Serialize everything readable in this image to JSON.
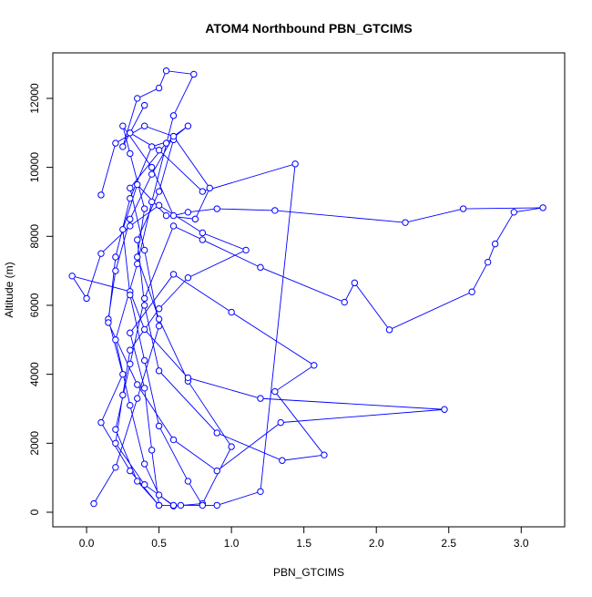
{
  "chart_data": {
    "type": "line",
    "title": "ATOM4 Northbound PBN_GTCIMS",
    "x_label": "PBN_GTCIMS",
    "y_label": "Altitude (m)",
    "xlim": [
      -0.233,
      3.3
    ],
    "ylim": [
      -423,
      13320
    ],
    "xticks": [
      {
        "value": 0,
        "label": "0.0"
      },
      0.5,
      {
        "value": 1,
        "label": "1.0"
      },
      1.5,
      {
        "value": 2,
        "label": "2.0"
      },
      2.5,
      {
        "value": 3,
        "label": "3.0"
      }
    ],
    "yticks": [
      0,
      2000,
      4000,
      6000,
      8000,
      10000,
      12000
    ],
    "series": [
      {
        "color": "#0000ff",
        "x": [
          0.05,
          0.2,
          0.35,
          0.5,
          0.4,
          0.3,
          0.55,
          0.7,
          0.6,
          0.45,
          0.3,
          0.2,
          0.15,
          0.25,
          0.1,
          0.3,
          0.5,
          0.65,
          0.9,
          1.2,
          1.44,
          0.8,
          0.5,
          0.3,
          0.4,
          0.25,
          0.35,
          0.5,
          0.55,
          0.74,
          0.6,
          0.45,
          0.35,
          0.2,
          0.3,
          0.4,
          0.5,
          0.6,
          0.8,
          1.0,
          0.7,
          0.5,
          0.35,
          0.4,
          0.3,
          0.25,
          0.45,
          0.6,
          0.7,
          0.9,
          1.3,
          2.2,
          2.6,
          3.15,
          2.95,
          2.82,
          2.77,
          2.66,
          2.09,
          1.85,
          1.78,
          1.2,
          0.8,
          0.6,
          0.4,
          0.3,
          0.2,
          0.35,
          0.5,
          0.45,
          0.4,
          0.3,
          0.6,
          1.0,
          1.57,
          1.3,
          1.64,
          1.35,
          0.9,
          0.5,
          0.4,
          0.35,
          0.5,
          0.6,
          0.45,
          0.3,
          0.2,
          0.15,
          0.35,
          0.6,
          0.9,
          1.34,
          2.47,
          1.2,
          0.7,
          0.4,
          0.3,
          -0.1,
          0.0,
          0.1,
          0.3,
          0.5,
          0.8,
          1.1,
          0.7,
          0.5,
          0.3,
          0.25,
          0.2,
          0.4,
          0.6,
          0.8,
          0.7,
          0.5,
          0.4,
          0.3,
          0.25,
          0.35,
          0.55,
          0.75,
          0.85,
          0.6,
          0.4,
          0.2,
          0.1
        ],
        "y": [
          250,
          1300,
          3300,
          5400,
          7600,
          9400,
          10700,
          11200,
          10900,
          9800,
          8500,
          7000,
          5600,
          4000,
          2600,
          1200,
          200,
          200,
          200,
          600,
          10100,
          9300,
          10500,
          11000,
          11800,
          10600,
          12000,
          12300,
          12800,
          12700,
          11500,
          9000,
          7200,
          5000,
          3100,
          1400,
          500,
          180,
          250,
          1900,
          3800,
          5600,
          7400,
          8800,
          10400,
          11200,
          10000,
          8600,
          8700,
          8800,
          8750,
          8400,
          8800,
          8830,
          8700,
          7780,
          7250,
          6390,
          5290,
          6650,
          6090,
          7100,
          7900,
          8300,
          6200,
          4300,
          2400,
          900,
          200,
          1800,
          3600,
          5200,
          6900,
          5800,
          4260,
          3500,
          1660,
          1500,
          2300,
          4100,
          6000,
          7900,
          9300,
          10800,
          10600,
          9100,
          7400,
          5500,
          3700,
          2100,
          1200,
          2600,
          2980,
          3300,
          3900,
          5300,
          6400,
          6850,
          6200,
          7500,
          8300,
          8900,
          8100,
          7600,
          6800,
          5900,
          4700,
          3400,
          2000,
          800,
          200,
          200,
          900,
          2500,
          4400,
          6300,
          8200,
          9500,
          8600,
          8500,
          9400,
          10900,
          11200,
          10700,
          9200
        ]
      }
    ]
  }
}
